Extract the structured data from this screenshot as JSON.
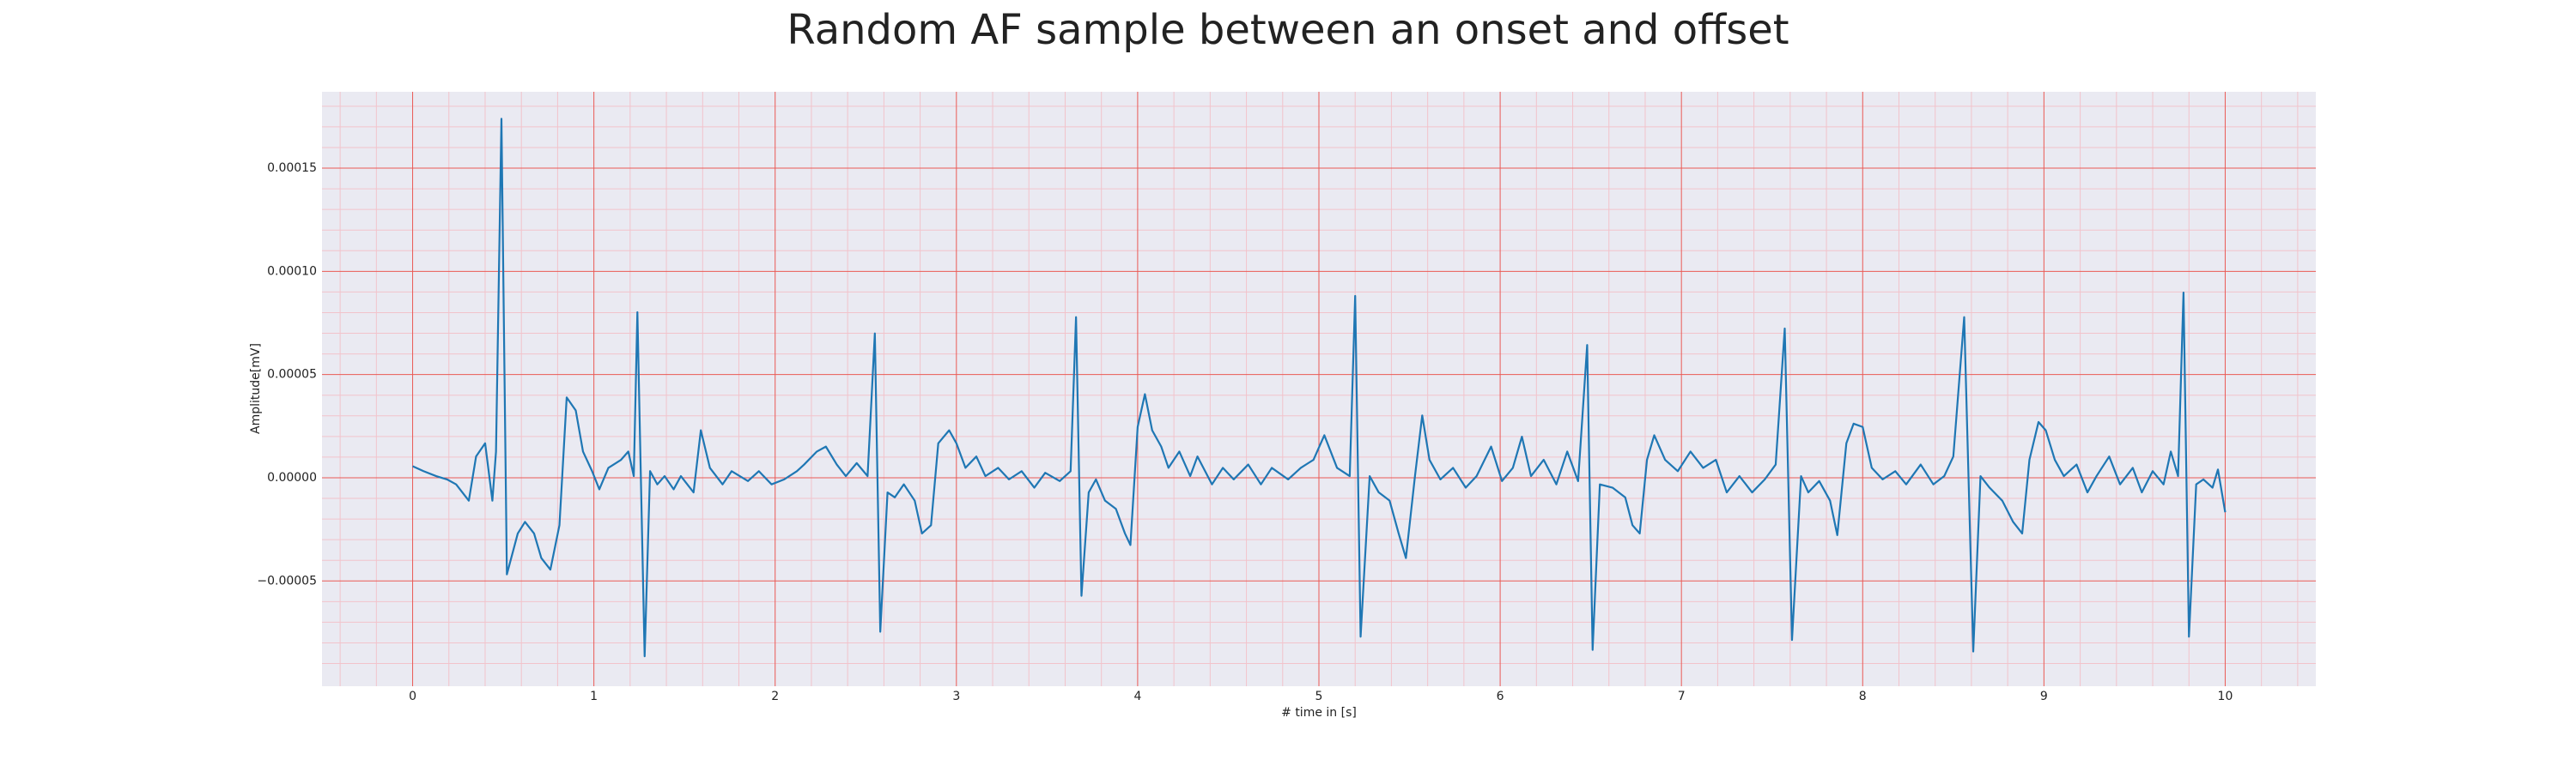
{
  "chart_data": {
    "type": "line",
    "title": "Random AF sample between an onset and offset",
    "xlabel": "# time in [s]",
    "ylabel": "Amplitude[mV]",
    "color": "#1f77b4",
    "grid": true,
    "minor_grid": true,
    "xlim": [
      -0.5,
      10.5
    ],
    "xticks": [
      0,
      1,
      2,
      3,
      4,
      5,
      6,
      7,
      8,
      9,
      10
    ],
    "ylim": [
      -0.000101,
      0.000187
    ],
    "yticks": [
      {
        "value": -5e-05,
        "label": "−0.00005"
      },
      {
        "value": 0,
        "label": "0.00000"
      },
      5e-05,
      {
        "value": 0.0001,
        "label": "0.00010"
      },
      0.00015
    ],
    "x": [
      0.0,
      0.06,
      0.13,
      0.19,
      0.24,
      0.31,
      0.35,
      0.4,
      0.44,
      0.46,
      0.49,
      0.52,
      0.58,
      0.62,
      0.67,
      0.71,
      0.76,
      0.81,
      0.85,
      0.9,
      0.94,
      0.99,
      1.03,
      1.08,
      1.15,
      1.19,
      1.22,
      1.24,
      1.28,
      1.31,
      1.35,
      1.39,
      1.44,
      1.48,
      1.55,
      1.59,
      1.64,
      1.71,
      1.76,
      1.85,
      1.91,
      1.98,
      2.05,
      2.12,
      2.16,
      2.23,
      2.28,
      2.34,
      2.39,
      2.45,
      2.51,
      2.55,
      2.58,
      2.62,
      2.66,
      2.71,
      2.77,
      2.81,
      2.86,
      2.9,
      2.96,
      3.0,
      3.05,
      3.11,
      3.16,
      3.23,
      3.29,
      3.36,
      3.43,
      3.49,
      3.57,
      3.63,
      3.66,
      3.69,
      3.73,
      3.77,
      3.82,
      3.88,
      3.93,
      3.96,
      4.0,
      4.04,
      4.08,
      4.13,
      4.17,
      4.23,
      4.29,
      4.33,
      4.41,
      4.47,
      4.53,
      4.61,
      4.68,
      4.74,
      4.83,
      4.9,
      4.97,
      5.03,
      5.1,
      5.17,
      5.2,
      5.23,
      5.28,
      5.33,
      5.39,
      5.44,
      5.48,
      5.53,
      5.57,
      5.61,
      5.67,
      5.74,
      5.81,
      5.87,
      5.95,
      6.01,
      6.07,
      6.12,
      6.17,
      6.24,
      6.31,
      6.37,
      6.43,
      6.48,
      6.51,
      6.55,
      6.62,
      6.69,
      6.73,
      6.77,
      6.81,
      6.85,
      6.91,
      6.98,
      7.05,
      7.12,
      7.19,
      7.25,
      7.32,
      7.39,
      7.46,
      7.52,
      7.57,
      7.61,
      7.66,
      7.7,
      7.76,
      7.82,
      7.86,
      7.91,
      7.95,
      8.0,
      8.05,
      8.11,
      8.18,
      8.24,
      8.32,
      8.39,
      8.45,
      8.5,
      8.56,
      8.61,
      8.65,
      8.7,
      8.77,
      8.83,
      8.88,
      8.92,
      8.97,
      9.01,
      9.06,
      9.11,
      9.18,
      9.24,
      9.29,
      9.36,
      9.42,
      9.49,
      9.54,
      9.6,
      9.66,
      9.7,
      9.74,
      9.77,
      9.8,
      9.84,
      9.88,
      9.93,
      9.96,
      10.0
    ],
    "values": [
      5.6e-06,
      3.2e-06,
      8e-07,
      -8e-07,
      -3.2e-06,
      -1.11e-05,
      1.03e-05,
      1.67e-05,
      -1.11e-05,
      1.27e-05,
      0.0001739,
      -4.68e-05,
      -2.7e-05,
      -2.14e-05,
      -2.7e-05,
      -3.89e-05,
      -4.45e-05,
      -2.3e-05,
      3.89e-05,
      3.26e-05,
      1.27e-05,
      3.2e-06,
      -5.6e-06,
      4.8e-06,
      8.7e-06,
      1.27e-05,
      8e-07,
      8.02e-05,
      -8.65e-05,
      3.2e-06,
      -3.2e-06,
      8e-07,
      -5.6e-06,
      8e-07,
      -7.1e-06,
      2.3e-05,
      4.8e-06,
      -3.2e-06,
      3.2e-06,
      -1.6e-06,
      3.2e-06,
      -3.2e-06,
      -8e-07,
      3.2e-06,
      6.4e-06,
      1.27e-05,
      1.51e-05,
      6.4e-06,
      8e-07,
      7.1e-06,
      8e-07,
      6.99e-05,
      -7.46e-05,
      -7.1e-06,
      -9.5e-06,
      -3.2e-06,
      -1.11e-05,
      -2.7e-05,
      -2.3e-05,
      1.67e-05,
      2.3e-05,
      1.67e-05,
      4.8e-06,
      1.03e-05,
      8e-07,
      4.8e-06,
      -8e-07,
      3.2e-06,
      -4.8e-06,
      2.4e-06,
      -1.6e-06,
      3.2e-06,
      7.78e-05,
      -5.72e-05,
      -7.1e-06,
      -8e-07,
      -1.11e-05,
      -1.51e-05,
      -2.7e-05,
      -3.26e-05,
      2.46e-05,
      4.05e-05,
      2.3e-05,
      1.51e-05,
      4.8e-06,
      1.27e-05,
      8e-07,
      1.03e-05,
      -3.2e-06,
      4.8e-06,
      -8e-07,
      6.4e-06,
      -3.2e-06,
      4.8e-06,
      -8e-07,
      4.8e-06,
      8.7e-06,
      2.06e-05,
      4.8e-06,
      8e-07,
      8.81e-05,
      -7.7e-05,
      8e-07,
      -7.1e-06,
      -1.11e-05,
      -2.7e-05,
      -3.89e-05,
      8e-07,
      3.02e-05,
      8.7e-06,
      -8e-07,
      4.8e-06,
      -4.8e-06,
      8e-07,
      1.51e-05,
      -1.6e-06,
      4.8e-06,
      1.99e-05,
      8e-07,
      8.7e-06,
      -3.2e-06,
      1.27e-05,
      -1.6e-06,
      6.43e-05,
      -8.34e-05,
      -3.2e-06,
      -4.8e-06,
      -9.5e-06,
      -2.3e-05,
      -2.7e-05,
      8.7e-06,
      2.06e-05,
      8.7e-06,
      3.2e-06,
      1.27e-05,
      4.8e-06,
      8.7e-06,
      -7.1e-06,
      8e-07,
      -7.1e-06,
      -8e-07,
      6.4e-06,
      7.23e-05,
      -7.86e-05,
      8e-07,
      -7.1e-06,
      -1.6e-06,
      -1.11e-05,
      -2.78e-05,
      1.67e-05,
      2.62e-05,
      2.46e-05,
      4.8e-06,
      -8e-07,
      3.2e-06,
      -3.2e-06,
      6.4e-06,
      -3.2e-06,
      8e-07,
      1.03e-05,
      7.78e-05,
      -8.42e-05,
      8e-07,
      -4.8e-06,
      -1.11e-05,
      -2.14e-05,
      -2.7e-05,
      8.7e-06,
      2.7e-05,
      2.3e-05,
      8.7e-06,
      8e-07,
      6.4e-06,
      -7.1e-06,
      8e-07,
      1.03e-05,
      -3.2e-06,
      4.8e-06,
      -7.1e-06,
      3.2e-06,
      -3.2e-06,
      1.27e-05,
      8e-07,
      8.97e-05,
      -7.7e-05,
      -3.2e-06,
      -8e-07,
      -4.8e-06,
      4e-06,
      -1.67e-05
    ]
  }
}
